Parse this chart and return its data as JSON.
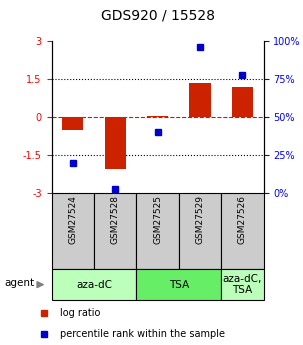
{
  "title": "GDS920 / 15528",
  "samples": [
    "GSM27524",
    "GSM27528",
    "GSM27525",
    "GSM27529",
    "GSM27526"
  ],
  "log_ratio": [
    -0.5,
    -2.05,
    0.05,
    1.35,
    1.2
  ],
  "percentile": [
    20,
    3,
    40,
    96,
    78
  ],
  "ylim_left": [
    -3,
    3
  ],
  "ylim_right": [
    0,
    100
  ],
  "yticks_left": [
    -3,
    -1.5,
    0,
    1.5,
    3
  ],
  "yticks_right": [
    0,
    25,
    50,
    75,
    100
  ],
  "ytick_labels_left": [
    "-3",
    "-1.5",
    "0",
    "1.5",
    "3"
  ],
  "ytick_labels_right": [
    "0%",
    "25%",
    "50%",
    "75%",
    "100%"
  ],
  "bar_color": "#cc2200",
  "scatter_color": "#0000cc",
  "bar_width": 0.5,
  "agents": [
    {
      "label": "aza-dC",
      "samples": [
        0,
        1
      ],
      "color": "#bbffbb"
    },
    {
      "label": "TSA",
      "samples": [
        2,
        3
      ],
      "color": "#66ee66"
    },
    {
      "label": "aza-dC,\nTSA",
      "samples": [
        4
      ],
      "color": "#bbffbb"
    }
  ],
  "legend_log": "log ratio",
  "legend_pct": "percentile rank within the sample",
  "sample_box_color": "#cccccc",
  "title_fontsize": 10,
  "tick_fontsize": 7,
  "sample_fontsize": 6.5,
  "agent_fontsize": 7.5,
  "legend_fontsize": 7
}
